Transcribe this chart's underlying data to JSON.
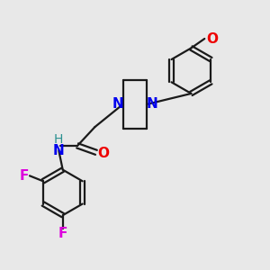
{
  "bg_color": "#e8e8e8",
  "bond_color": "#1a1a1a",
  "N_color": "#0000ee",
  "O_color": "#ee0000",
  "F_color": "#dd00dd",
  "H_color": "#2a9090",
  "line_width": 1.6,
  "font_size": 10,
  "figsize": [
    3.0,
    3.0
  ],
  "dpi": 100,
  "xlim": [
    0,
    10
  ],
  "ylim": [
    0,
    10
  ]
}
